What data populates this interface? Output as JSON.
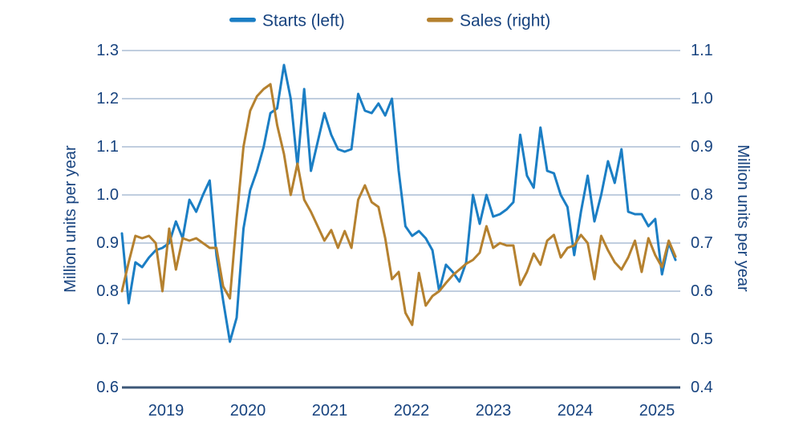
{
  "chart_data": {
    "type": "line",
    "title": "",
    "x_note": "monthly series",
    "points_per_series": 83,
    "x_tick_labels": [
      "2019",
      "2020",
      "2021",
      "2022",
      "2023",
      "2024",
      "2025"
    ],
    "grid": "horizontal",
    "legend_position": "top-center",
    "y_left": {
      "label": "Million units per year",
      "range": [
        0.6,
        1.3
      ],
      "ticks": [
        "1.3",
        "1.2",
        "1.1",
        "1.0",
        "0.9",
        "0.8",
        "0.7",
        "0.6"
      ]
    },
    "y_right": {
      "label": "Million units per year",
      "range": [
        0.4,
        1.1
      ],
      "ticks": [
        "1.1",
        "1.0",
        "0.9",
        "0.8",
        "0.7",
        "0.6",
        "0.5",
        "0.4"
      ]
    },
    "series": [
      {
        "name": "Starts (left)",
        "axis": "left",
        "color": "#1b7ec4",
        "values": [
          0.92,
          0.775,
          0.86,
          0.85,
          0.87,
          0.885,
          0.89,
          0.9,
          0.945,
          0.91,
          0.99,
          0.965,
          1.0,
          1.03,
          0.875,
          0.78,
          0.695,
          0.745,
          0.93,
          1.01,
          1.05,
          1.1,
          1.17,
          1.18,
          1.27,
          1.2,
          1.06,
          1.22,
          1.05,
          1.11,
          1.17,
          1.125,
          1.095,
          1.09,
          1.095,
          1.21,
          1.175,
          1.17,
          1.19,
          1.165,
          1.2,
          1.05,
          0.935,
          0.915,
          0.925,
          0.91,
          0.885,
          0.8,
          0.855,
          0.84,
          0.82,
          0.86,
          1.0,
          0.94,
          1.0,
          0.955,
          0.96,
          0.97,
          0.985,
          1.125,
          1.04,
          1.015,
          1.14,
          1.05,
          1.045,
          1.0,
          0.975,
          0.875,
          0.965,
          1.04,
          0.945,
          1.0,
          1.07,
          1.025,
          1.095,
          0.965,
          0.96,
          0.96,
          0.935,
          0.95,
          0.835,
          0.9,
          0.865
        ]
      },
      {
        "name": "Sales (right)",
        "axis": "right",
        "color": "#b5812f",
        "values": [
          0.6,
          0.66,
          0.715,
          0.71,
          0.715,
          0.7,
          0.6,
          0.73,
          0.645,
          0.71,
          0.705,
          0.71,
          0.7,
          0.69,
          0.69,
          0.61,
          0.585,
          0.75,
          0.9,
          0.975,
          1.005,
          1.02,
          1.03,
          0.945,
          0.885,
          0.8,
          0.865,
          0.79,
          0.765,
          0.735,
          0.705,
          0.727,
          0.69,
          0.725,
          0.69,
          0.79,
          0.82,
          0.785,
          0.775,
          0.71,
          0.625,
          0.64,
          0.555,
          0.53,
          0.638,
          0.57,
          0.59,
          0.6,
          0.617,
          0.633,
          0.645,
          0.657,
          0.665,
          0.68,
          0.735,
          0.69,
          0.7,
          0.695,
          0.695,
          0.613,
          0.64,
          0.678,
          0.655,
          0.705,
          0.717,
          0.67,
          0.69,
          0.695,
          0.717,
          0.7,
          0.625,
          0.715,
          0.685,
          0.66,
          0.645,
          0.67,
          0.705,
          0.64,
          0.71,
          0.675,
          0.65,
          0.705,
          0.672
        ]
      }
    ],
    "colors": {
      "starts_line": "#1b7ec4",
      "sales_line": "#b5812f",
      "gridline": "#9bb0cc",
      "bottom_axis": "#3d5878",
      "text": "#17437f"
    }
  }
}
